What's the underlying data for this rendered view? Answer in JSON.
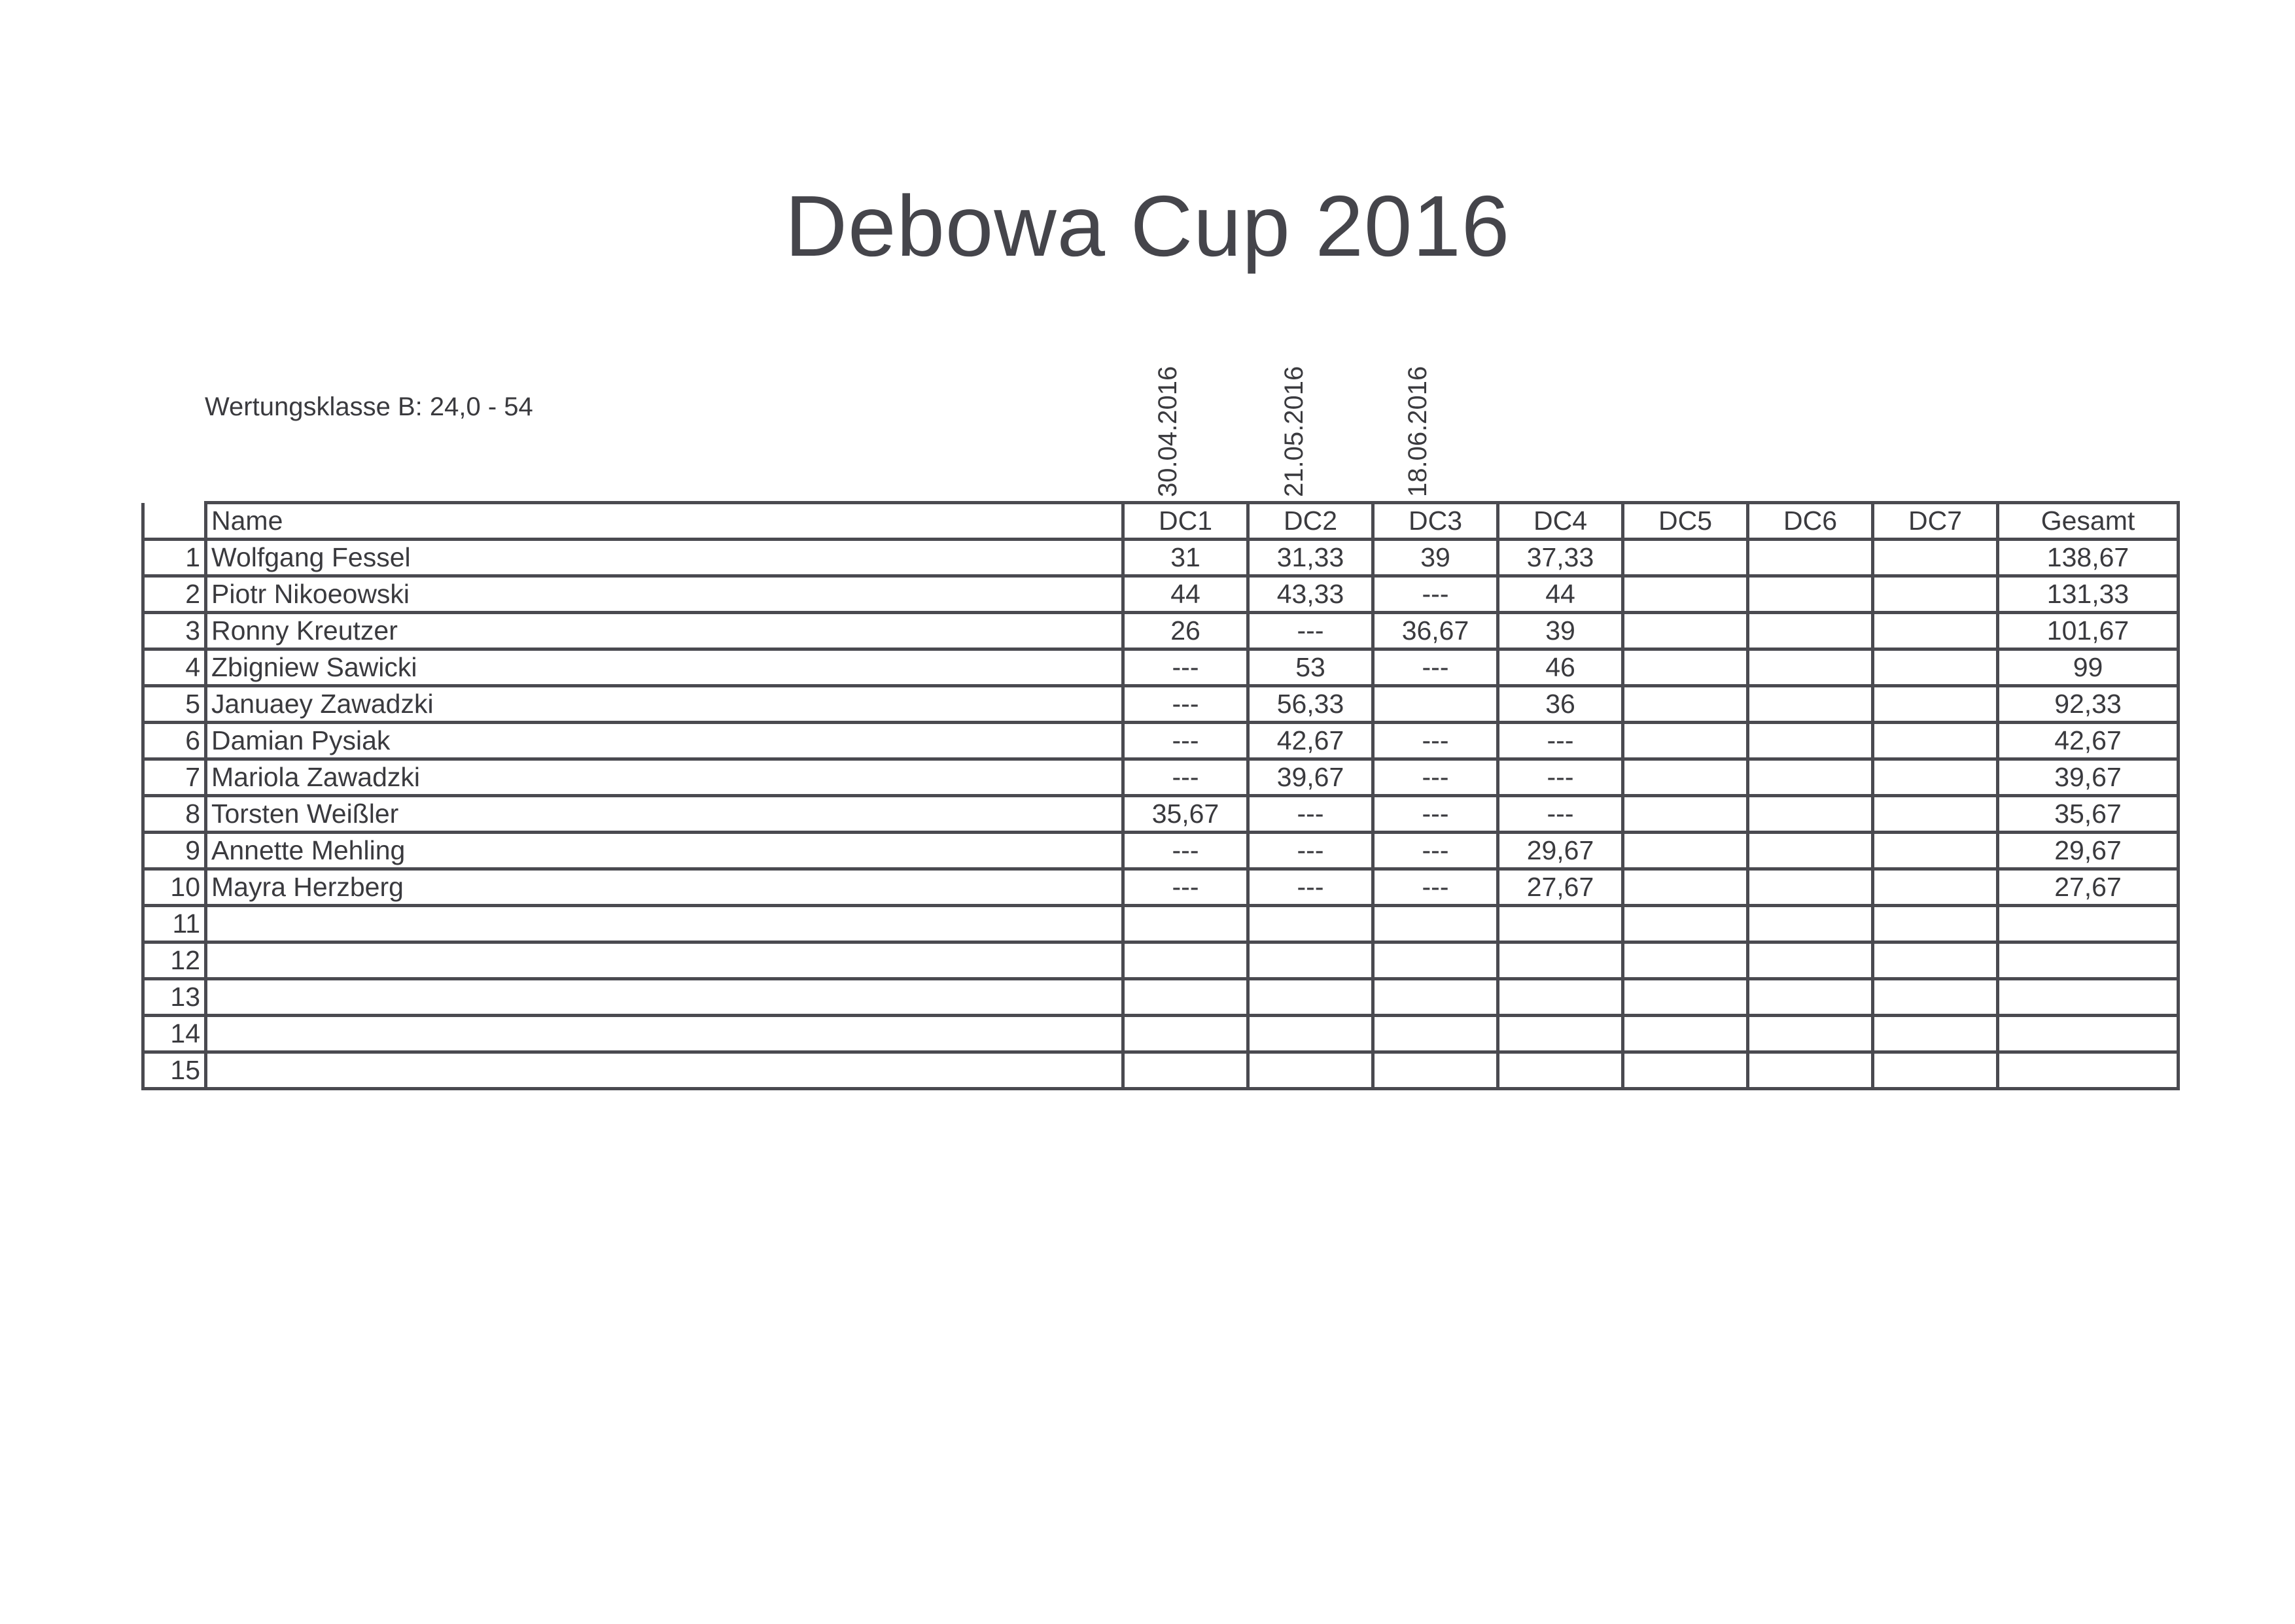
{
  "title": "Debowa Cup 2016",
  "klasse": "Wertungsklasse B: 24,0 - 54",
  "dates": [
    "30.04.2016",
    "21.05.2016",
    "18.06.2016"
  ],
  "table": {
    "headers": [
      "",
      "Name",
      "DC1",
      "DC2",
      "DC3",
      "DC4",
      "DC5",
      "DC6",
      "DC7",
      "Gesamt"
    ],
    "rows": [
      [
        "1",
        "Wolfgang Fessel",
        "31",
        "31,33",
        "39",
        "37,33",
        "",
        "",
        "",
        "138,67"
      ],
      [
        "2",
        "Piotr Nikoeowski",
        "44",
        "43,33",
        "---",
        "44",
        "",
        "",
        "",
        "131,33"
      ],
      [
        "3",
        "Ronny Kreutzer",
        "26",
        "---",
        "36,67",
        "39",
        "",
        "",
        "",
        "101,67"
      ],
      [
        "4",
        "Zbigniew Sawicki",
        "---",
        "53",
        "---",
        "46",
        "",
        "",
        "",
        "99"
      ],
      [
        "5",
        "Januaey Zawadzki",
        "---",
        "56,33",
        "",
        "36",
        "",
        "",
        "",
        "92,33"
      ],
      [
        "6",
        "Damian Pysiak",
        "---",
        "42,67",
        "---",
        "---",
        "",
        "",
        "",
        "42,67"
      ],
      [
        "7",
        "Mariola Zawadzki",
        "---",
        "39,67",
        "---",
        "---",
        "",
        "",
        "",
        "39,67"
      ],
      [
        "8",
        "Torsten Weißler",
        "35,67",
        "---",
        "---",
        "---",
        "",
        "",
        "",
        "35,67"
      ],
      [
        "9",
        "Annette Mehling",
        "---",
        "---",
        "---",
        "29,67",
        "",
        "",
        "",
        "29,67"
      ],
      [
        "10",
        "Mayra Herzberg",
        "---",
        "---",
        "---",
        "27,67",
        "",
        "",
        "",
        "27,67"
      ],
      [
        "11",
        "",
        "",
        "",
        "",
        "",
        "",
        "",
        "",
        ""
      ],
      [
        "12",
        "",
        "",
        "",
        "",
        "",
        "",
        "",
        "",
        ""
      ],
      [
        "13",
        "",
        "",
        "",
        "",
        "",
        "",
        "",
        "",
        ""
      ],
      [
        "14",
        "",
        "",
        "",
        "",
        "",
        "",
        "",
        "",
        ""
      ],
      [
        "15",
        "",
        "",
        "",
        "",
        "",
        "",
        "",
        "",
        ""
      ]
    ]
  }
}
